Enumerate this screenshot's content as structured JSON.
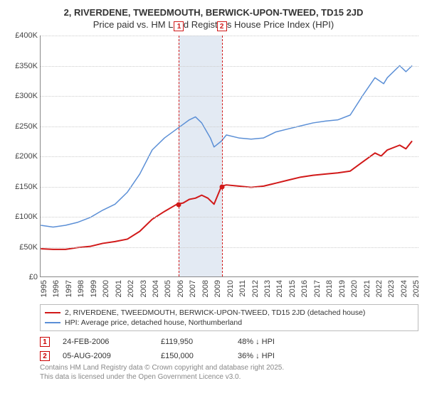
{
  "title_line1": "2, RIVERDENE, TWEEDMOUTH, BERWICK-UPON-TWEED, TD15 2JD",
  "title_line2": "Price paid vs. HM Land Registry's House Price Index (HPI)",
  "chart": {
    "type": "line",
    "background_color": "#ffffff",
    "grid_color": "#cccccc",
    "axis_color": "#888888",
    "title_fontsize": 13,
    "tick_fontsize": 11,
    "x": {
      "min": 1995,
      "max": 2025.5,
      "ticks": [
        1995,
        1996,
        1997,
        1998,
        1999,
        2000,
        2001,
        2002,
        2003,
        2004,
        2005,
        2006,
        2007,
        2008,
        2009,
        2010,
        2011,
        2012,
        2013,
        2014,
        2015,
        2016,
        2017,
        2018,
        2019,
        2020,
        2021,
        2022,
        2023,
        2024,
        2025
      ]
    },
    "y": {
      "min": 0,
      "max": 400000,
      "ticks": [
        0,
        50000,
        100000,
        150000,
        200000,
        250000,
        300000,
        350000,
        400000
      ],
      "tick_prefix": "£",
      "tick_suffix": "K",
      "tick_divisor": 1000
    },
    "shade_band": {
      "from": 2006.15,
      "to": 2009.6,
      "color": "rgba(176,196,222,0.35)"
    },
    "series": [
      {
        "id": "price_paid",
        "label": "2, RIVERDENE, TWEEDMOUTH, BERWICK-UPON-TWEED, TD15 2JD (detached house)",
        "color": "#d11919",
        "line_width": 2,
        "points": [
          [
            1995,
            46000
          ],
          [
            1996,
            45000
          ],
          [
            1997,
            45000
          ],
          [
            1998,
            48000
          ],
          [
            1999,
            50000
          ],
          [
            2000,
            55000
          ],
          [
            2001,
            58000
          ],
          [
            2002,
            62000
          ],
          [
            2003,
            75000
          ],
          [
            2004,
            95000
          ],
          [
            2005,
            108000
          ],
          [
            2006,
            119950
          ],
          [
            2006.5,
            122000
          ],
          [
            2007,
            128000
          ],
          [
            2007.5,
            130000
          ],
          [
            2008,
            135000
          ],
          [
            2008.5,
            130000
          ],
          [
            2009,
            120000
          ],
          [
            2009.6,
            150000
          ],
          [
            2010,
            152000
          ],
          [
            2011,
            150000
          ],
          [
            2012,
            148000
          ],
          [
            2013,
            150000
          ],
          [
            2014,
            155000
          ],
          [
            2015,
            160000
          ],
          [
            2016,
            165000
          ],
          [
            2017,
            168000
          ],
          [
            2018,
            170000
          ],
          [
            2019,
            172000
          ],
          [
            2020,
            175000
          ],
          [
            2021,
            190000
          ],
          [
            2022,
            205000
          ],
          [
            2022.5,
            200000
          ],
          [
            2023,
            210000
          ],
          [
            2024,
            218000
          ],
          [
            2024.5,
            212000
          ],
          [
            2025,
            225000
          ]
        ]
      },
      {
        "id": "hpi",
        "label": "HPI: Average price, detached house, Northumberland",
        "color": "#5b8fd6",
        "line_width": 1.5,
        "points": [
          [
            1995,
            85000
          ],
          [
            1996,
            82000
          ],
          [
            1997,
            85000
          ],
          [
            1998,
            90000
          ],
          [
            1999,
            98000
          ],
          [
            2000,
            110000
          ],
          [
            2001,
            120000
          ],
          [
            2002,
            140000
          ],
          [
            2003,
            170000
          ],
          [
            2004,
            210000
          ],
          [
            2005,
            230000
          ],
          [
            2006,
            245000
          ],
          [
            2007,
            260000
          ],
          [
            2007.5,
            265000
          ],
          [
            2008,
            255000
          ],
          [
            2008.7,
            230000
          ],
          [
            2009,
            215000
          ],
          [
            2009.6,
            225000
          ],
          [
            2010,
            235000
          ],
          [
            2011,
            230000
          ],
          [
            2012,
            228000
          ],
          [
            2013,
            230000
          ],
          [
            2014,
            240000
          ],
          [
            2015,
            245000
          ],
          [
            2016,
            250000
          ],
          [
            2017,
            255000
          ],
          [
            2018,
            258000
          ],
          [
            2019,
            260000
          ],
          [
            2020,
            268000
          ],
          [
            2021,
            300000
          ],
          [
            2022,
            330000
          ],
          [
            2022.7,
            320000
          ],
          [
            2023,
            330000
          ],
          [
            2024,
            350000
          ],
          [
            2024.5,
            340000
          ],
          [
            2025,
            350000
          ]
        ]
      }
    ],
    "sale_markers": [
      {
        "n": "1",
        "x": 2006.15,
        "price": 119950,
        "color": "#d11919"
      },
      {
        "n": "2",
        "x": 2009.6,
        "price": 150000,
        "color": "#d11919"
      }
    ]
  },
  "legend": {
    "border_color": "#bbbbbb",
    "items": [
      {
        "color": "#d11919",
        "label": "2, RIVERDENE, TWEEDMOUTH, BERWICK-UPON-TWEED, TD15 2JD (detached house)"
      },
      {
        "color": "#5b8fd6",
        "label": "HPI: Average price, detached house, Northumberland"
      }
    ]
  },
  "sales": [
    {
      "n": "1",
      "date": "24-FEB-2006",
      "price": "£119,950",
      "pct": "48% ↓ HPI"
    },
    {
      "n": "2",
      "date": "05-AUG-2009",
      "price": "£150,000",
      "pct": "36% ↓ HPI"
    }
  ],
  "attribution_line1": "Contains HM Land Registry data © Crown copyright and database right 2025.",
  "attribution_line2": "This data is licensed under the Open Government Licence v3.0."
}
